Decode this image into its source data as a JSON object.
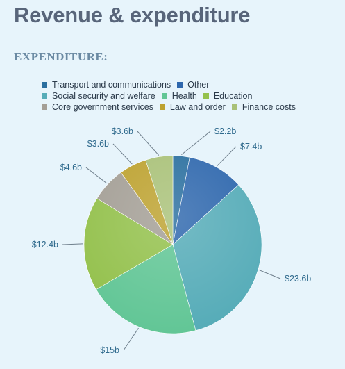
{
  "header": {
    "title": "Revenue & expenditure"
  },
  "section": {
    "title": "EXPENDITURE:"
  },
  "chart_data": {
    "type": "pie",
    "title": "EXPENDITURE:",
    "legend_position": "top",
    "slices": [
      {
        "name": "Transport and communications",
        "value": 2.2,
        "label": "$2.2b",
        "color": "#2a6f9f"
      },
      {
        "name": "Other",
        "value": 7.4,
        "label": "$7.4b",
        "color": "#2e67ad"
      },
      {
        "name": "Social security and welfare",
        "value": 23.6,
        "label": "$23.6b",
        "color": "#56acb8"
      },
      {
        "name": "Health",
        "value": 15,
        "label": "$15b",
        "color": "#62c696"
      },
      {
        "name": "Education",
        "value": 12.4,
        "label": "$12.4b",
        "color": "#94c14d"
      },
      {
        "name": "Core government services",
        "value": 4.6,
        "label": "$4.6b",
        "color": "#a49f96"
      },
      {
        "name": "Law and order",
        "value": 3.6,
        "label": "$3.6b",
        "color": "#bda230"
      },
      {
        "name": "Finance costs",
        "value": 3.6,
        "label": "$3.6b",
        "color": "#a9c178"
      }
    ],
    "legend_rows": [
      [
        "Transport and communications",
        "Other"
      ],
      [
        "Social security and welfare",
        "Health",
        "Education"
      ],
      [
        "Core government services",
        "Law and order",
        "Finance costs"
      ]
    ]
  }
}
